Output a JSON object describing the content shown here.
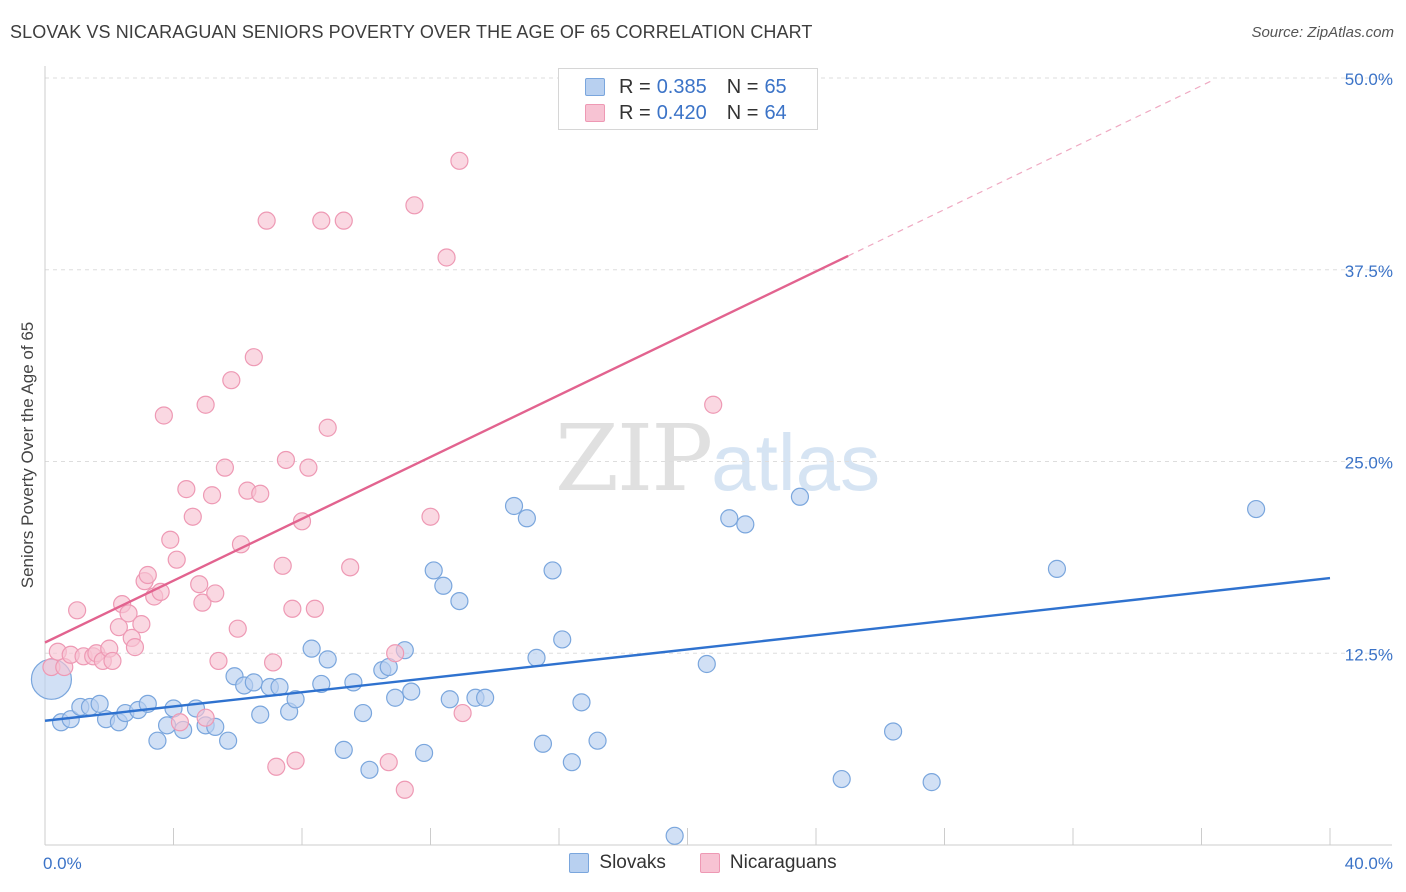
{
  "header": {
    "title": "SLOVAK VS NICARAGUAN SENIORS POVERTY OVER THE AGE OF 65 CORRELATION CHART",
    "source": "Source: ZipAtlas.com"
  },
  "watermark": {
    "zip": "ZIP",
    "atlas": "atlas"
  },
  "legend": {
    "rows": [
      {
        "r_label": "R =",
        "r_value": "0.385",
        "n_label": "N =",
        "n_value": "65"
      },
      {
        "r_label": "R =",
        "r_value": "0.420",
        "n_label": "N =",
        "n_value": "64"
      }
    ]
  },
  "colors": {
    "slovaks_fill": "#b8d0f0",
    "slovaks_stroke": "#7aa6dd",
    "slovaks_line": "#2f72cf",
    "nicaraguans_fill": "#f7c3d3",
    "nicaraguans_stroke": "#ee99b4",
    "nicaraguans_line": "#e2638f",
    "tick_label": "#3b73c7",
    "grid": "#dddddd"
  },
  "chart_data": {
    "type": "scatter",
    "title": "SLOVAK VS NICARAGUAN SENIORS POVERTY OVER THE AGE OF 65 CORRELATION CHART",
    "xlabel": "",
    "ylabel": "Seniors Poverty Over the Age of 65",
    "xlim": [
      0,
      40
    ],
    "ylim": [
      0,
      50
    ],
    "x_tick_labels": [
      "0.0%",
      "40.0%"
    ],
    "y_ticks": [
      12.5,
      25,
      37.5,
      50
    ],
    "y_tick_labels": [
      "12.5%",
      "25.0%",
      "37.5%",
      "50.0%"
    ],
    "grid": true,
    "legend_position": "bottom",
    "series": [
      {
        "name": "Slovaks",
        "r": 0.385,
        "n": 65,
        "trend": {
          "x": [
            0,
            40
          ],
          "y": [
            8.1,
            17.4
          ]
        },
        "points": [
          [
            0.2,
            10.8
          ],
          [
            0.5,
            8.0
          ],
          [
            0.8,
            8.2
          ],
          [
            1.1,
            9.0
          ],
          [
            1.4,
            9.0
          ],
          [
            1.7,
            9.2
          ],
          [
            1.9,
            8.2
          ],
          [
            2.3,
            8.0
          ],
          [
            2.5,
            8.6
          ],
          [
            2.9,
            8.8
          ],
          [
            3.2,
            9.2
          ],
          [
            3.5,
            6.8
          ],
          [
            3.8,
            7.8
          ],
          [
            4.0,
            8.9
          ],
          [
            4.3,
            7.5
          ],
          [
            4.7,
            8.9
          ],
          [
            5.0,
            7.8
          ],
          [
            5.3,
            7.7
          ],
          [
            5.7,
            6.8
          ],
          [
            5.9,
            11.0
          ],
          [
            6.2,
            10.4
          ],
          [
            6.5,
            10.6
          ],
          [
            6.7,
            8.5
          ],
          [
            7.0,
            10.3
          ],
          [
            7.3,
            10.3
          ],
          [
            7.6,
            8.7
          ],
          [
            7.8,
            9.5
          ],
          [
            8.3,
            12.8
          ],
          [
            8.6,
            10.5
          ],
          [
            8.8,
            12.1
          ],
          [
            9.3,
            6.2
          ],
          [
            9.6,
            10.6
          ],
          [
            9.9,
            8.6
          ],
          [
            10.1,
            4.9
          ],
          [
            10.5,
            11.4
          ],
          [
            10.7,
            11.6
          ],
          [
            10.9,
            9.6
          ],
          [
            11.2,
            12.7
          ],
          [
            11.4,
            10.0
          ],
          [
            11.8,
            6.0
          ],
          [
            12.1,
            17.9
          ],
          [
            12.4,
            16.9
          ],
          [
            12.6,
            9.5
          ],
          [
            12.9,
            15.9
          ],
          [
            13.4,
            9.6
          ],
          [
            13.7,
            9.6
          ],
          [
            14.6,
            22.1
          ],
          [
            15.0,
            21.3
          ],
          [
            15.3,
            12.2
          ],
          [
            15.5,
            6.6
          ],
          [
            15.8,
            17.9
          ],
          [
            16.1,
            13.4
          ],
          [
            16.4,
            5.4
          ],
          [
            16.7,
            9.3
          ],
          [
            17.2,
            6.8
          ],
          [
            19.6,
            0.6
          ],
          [
            20.6,
            11.8
          ],
          [
            21.3,
            21.3
          ],
          [
            21.8,
            20.9
          ],
          [
            23.5,
            22.7
          ],
          [
            24.8,
            4.3
          ],
          [
            26.4,
            7.4
          ],
          [
            27.6,
            4.1
          ],
          [
            31.5,
            18.0
          ],
          [
            37.7,
            21.9
          ]
        ]
      },
      {
        "name": "Nicaraguans",
        "r": 0.42,
        "n": 64,
        "trend": {
          "x": [
            0,
            25
          ],
          "y": [
            13.2,
            38.4
          ]
        },
        "trend_extension": {
          "x": [
            25,
            36.3
          ],
          "y": [
            38.4,
            49.8
          ]
        },
        "points": [
          [
            0.2,
            11.6
          ],
          [
            0.4,
            12.6
          ],
          [
            0.6,
            11.6
          ],
          [
            0.8,
            12.4
          ],
          [
            1.0,
            15.3
          ],
          [
            1.2,
            12.3
          ],
          [
            1.5,
            12.3
          ],
          [
            1.6,
            12.5
          ],
          [
            1.8,
            12.0
          ],
          [
            2.0,
            12.8
          ],
          [
            2.1,
            12.0
          ],
          [
            2.3,
            14.2
          ],
          [
            2.4,
            15.7
          ],
          [
            2.6,
            15.1
          ],
          [
            2.7,
            13.5
          ],
          [
            2.8,
            12.9
          ],
          [
            3.0,
            14.4
          ],
          [
            3.1,
            17.2
          ],
          [
            3.2,
            17.6
          ],
          [
            3.4,
            16.2
          ],
          [
            3.6,
            16.5
          ],
          [
            3.7,
            28.0
          ],
          [
            3.9,
            19.9
          ],
          [
            4.1,
            18.6
          ],
          [
            4.2,
            8.0
          ],
          [
            4.4,
            23.2
          ],
          [
            4.6,
            21.4
          ],
          [
            4.8,
            17.0
          ],
          [
            4.9,
            15.8
          ],
          [
            5.0,
            28.7
          ],
          [
            5.2,
            22.8
          ],
          [
            5.3,
            16.4
          ],
          [
            5.4,
            12.0
          ],
          [
            5.6,
            24.6
          ],
          [
            5.8,
            30.3
          ],
          [
            6.0,
            14.1
          ],
          [
            6.1,
            19.6
          ],
          [
            6.3,
            23.1
          ],
          [
            6.5,
            31.8
          ],
          [
            6.7,
            22.9
          ],
          [
            6.9,
            40.7
          ],
          [
            7.1,
            11.9
          ],
          [
            7.2,
            5.1
          ],
          [
            7.4,
            18.2
          ],
          [
            7.5,
            25.1
          ],
          [
            7.7,
            15.4
          ],
          [
            7.8,
            5.5
          ],
          [
            8.0,
            21.1
          ],
          [
            8.2,
            24.6
          ],
          [
            8.4,
            15.4
          ],
          [
            8.6,
            40.7
          ],
          [
            8.8,
            27.2
          ],
          [
            9.3,
            40.7
          ],
          [
            9.5,
            18.1
          ],
          [
            10.7,
            5.4
          ],
          [
            10.9,
            12.5
          ],
          [
            11.2,
            3.6
          ],
          [
            11.5,
            41.7
          ],
          [
            12.0,
            21.4
          ],
          [
            12.5,
            38.3
          ],
          [
            12.9,
            44.6
          ],
          [
            13.0,
            8.6
          ],
          [
            20.8,
            28.7
          ],
          [
            5.0,
            8.3
          ]
        ]
      }
    ]
  }
}
